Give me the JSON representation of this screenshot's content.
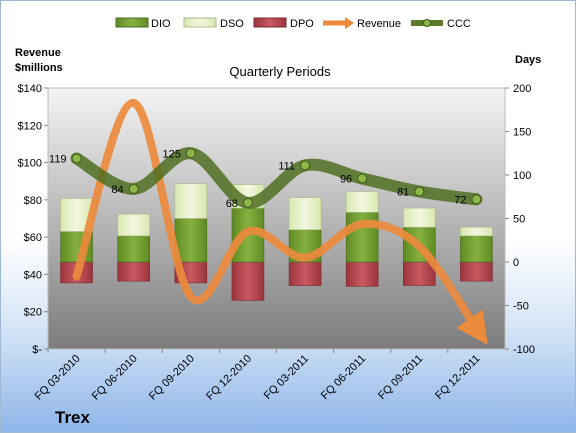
{
  "chart_data": {
    "type": "bar",
    "title": "Quarterly Periods",
    "company": "Trex",
    "left_axis_label": [
      "Revenue",
      "$millions"
    ],
    "right_axis_label": "Days",
    "categories": [
      "FQ 03-2010",
      "FQ 06-2010",
      "FQ 09-2010",
      "FQ 12-2010",
      "FQ 03-2011",
      "FQ 06-2011",
      "FQ 09-2011",
      "FQ 12-2011"
    ],
    "left_ticks": [
      "$-",
      "$20",
      "$40",
      "$60",
      "$80",
      "$100",
      "$120",
      "$140"
    ],
    "right_ticks": [
      "-100",
      "-50",
      "0",
      "50",
      "100",
      "150",
      "200"
    ],
    "ylim_left": [
      0,
      140
    ],
    "ylim_right": [
      -100,
      200
    ],
    "grid": false,
    "legend_position": "top",
    "series": [
      {
        "name": "DIO",
        "color": "#6e9a2e",
        "values": [
          35,
          30,
          50,
          62,
          37,
          57,
          40,
          30
        ]
      },
      {
        "name": "DSO",
        "color": "#e3efc4",
        "values": [
          38,
          25,
          40,
          27,
          37,
          24,
          22,
          10
        ]
      },
      {
        "name": "DPO",
        "color": "#b0434c",
        "values": [
          -24,
          -22,
          -24,
          -44,
          -27,
          -28,
          -27,
          -22
        ]
      },
      {
        "name": "Revenue",
        "color": "#ec8a3c",
        "values": [
          39,
          132,
          28,
          63,
          49,
          67,
          55,
          11
        ]
      },
      {
        "name": "CCC",
        "color": "#5b7a2a",
        "values": [
          119,
          84,
          125,
          68,
          111,
          96,
          81,
          72
        ]
      }
    ],
    "ccc_labels": [
      "119",
      "84",
      "125",
      "68",
      "111",
      "96",
      "81",
      "72"
    ]
  }
}
